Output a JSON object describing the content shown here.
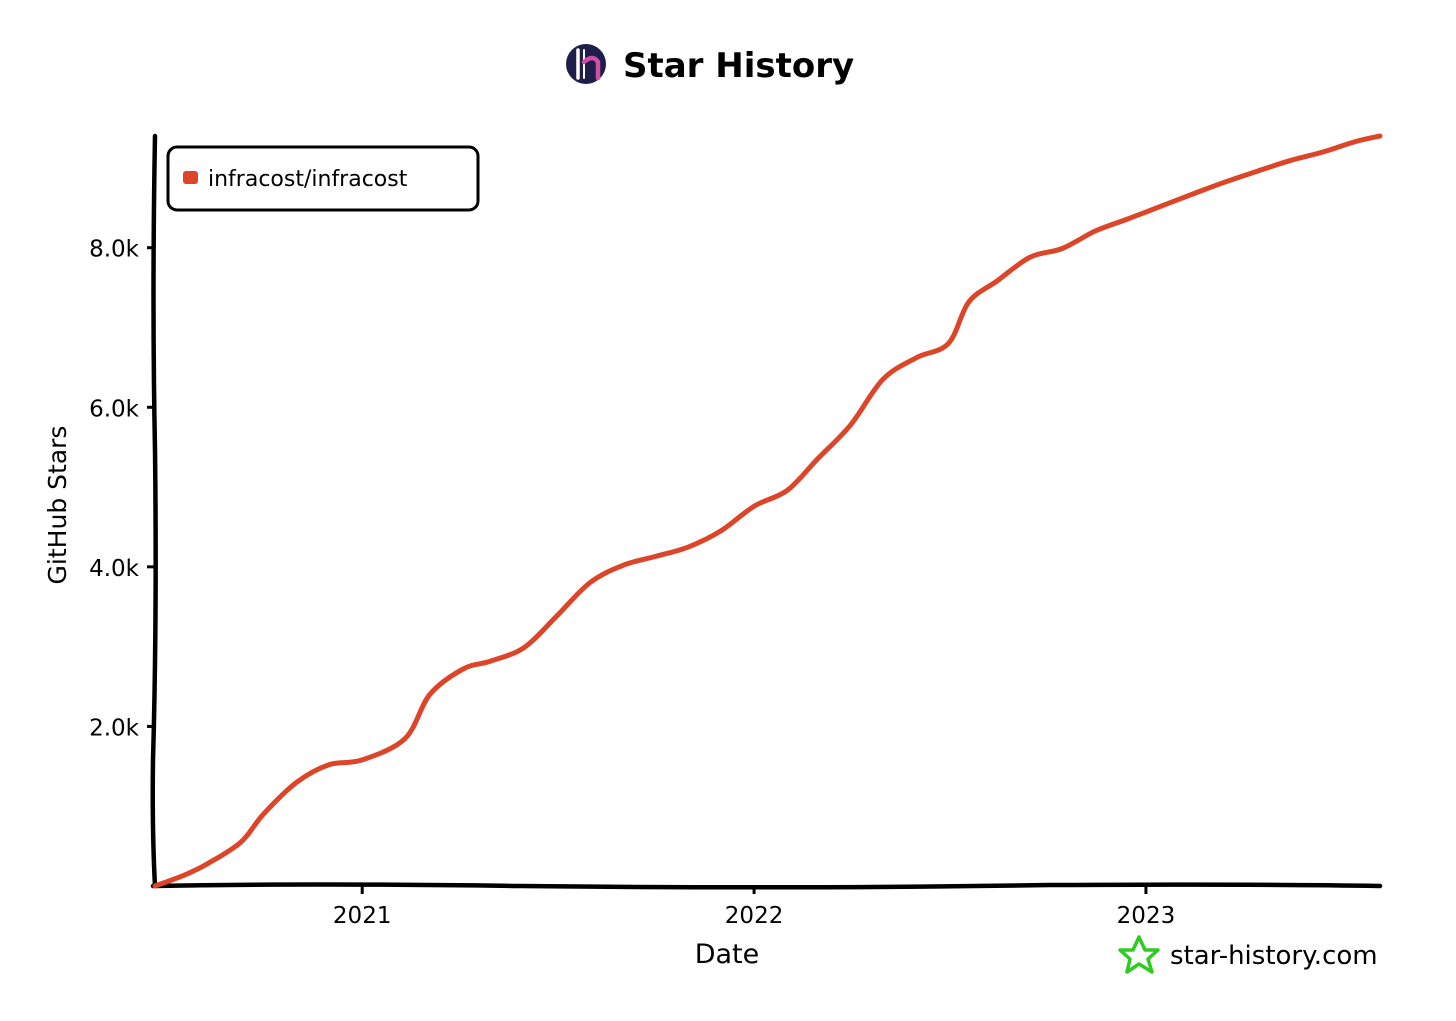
{
  "header": {
    "logo_icon": "star-history-logo-icon",
    "title": "Star History"
  },
  "footer": {
    "brand_icon": "green-star-icon",
    "brand_text": "star-history.com"
  },
  "colors": {
    "series": "#dd4528",
    "axis": "#000000",
    "brand_green": "#2ecc1f",
    "logo_bg": "#1f1d4a",
    "logo_accent": "#d04fa6"
  },
  "chart_data": {
    "type": "line",
    "title": "Star History",
    "xlabel": "Date",
    "ylabel": "GitHub Stars",
    "x_scale": "time",
    "xlim": [
      "2020-06-22",
      "2023-08-07"
    ],
    "ylim": [
      0,
      9400
    ],
    "x_ticks": [
      {
        "label": "2021",
        "date": "2021-01-01"
      },
      {
        "label": "2022",
        "date": "2022-01-01"
      },
      {
        "label": "2023",
        "date": "2023-01-01"
      }
    ],
    "y_ticks": [
      {
        "label": "2.0k",
        "value": 2000
      },
      {
        "label": "4.0k",
        "value": 4000
      },
      {
        "label": "6.0k",
        "value": 6000
      },
      {
        "label": "8.0k",
        "value": 8000
      }
    ],
    "grid": false,
    "legend_position": "top-left",
    "series": [
      {
        "name": "infracost/infracost",
        "color": "#dd4528",
        "points": [
          {
            "x": "2020-06-22",
            "y": 0
          },
          {
            "x": "2020-07-20",
            "y": 140
          },
          {
            "x": "2020-08-10",
            "y": 280
          },
          {
            "x": "2020-09-10",
            "y": 550
          },
          {
            "x": "2020-10-01",
            "y": 900
          },
          {
            "x": "2020-11-01",
            "y": 1300
          },
          {
            "x": "2020-12-01",
            "y": 1520
          },
          {
            "x": "2021-01-01",
            "y": 1580
          },
          {
            "x": "2021-02-10",
            "y": 1850
          },
          {
            "x": "2021-03-05",
            "y": 2400
          },
          {
            "x": "2021-04-05",
            "y": 2720
          },
          {
            "x": "2021-05-01",
            "y": 2820
          },
          {
            "x": "2021-06-01",
            "y": 2990
          },
          {
            "x": "2021-07-01",
            "y": 3380
          },
          {
            "x": "2021-08-01",
            "y": 3800
          },
          {
            "x": "2021-09-01",
            "y": 4020
          },
          {
            "x": "2021-10-01",
            "y": 4130
          },
          {
            "x": "2021-11-01",
            "y": 4250
          },
          {
            "x": "2021-12-01",
            "y": 4450
          },
          {
            "x": "2022-01-01",
            "y": 4760
          },
          {
            "x": "2022-02-01",
            "y": 4960
          },
          {
            "x": "2022-03-01",
            "y": 5350
          },
          {
            "x": "2022-04-01",
            "y": 5780
          },
          {
            "x": "2022-05-01",
            "y": 6350
          },
          {
            "x": "2022-06-01",
            "y": 6620
          },
          {
            "x": "2022-07-01",
            "y": 6800
          },
          {
            "x": "2022-07-20",
            "y": 7320
          },
          {
            "x": "2022-08-15",
            "y": 7580
          },
          {
            "x": "2022-09-15",
            "y": 7880
          },
          {
            "x": "2022-10-15",
            "y": 7990
          },
          {
            "x": "2022-11-15",
            "y": 8210
          },
          {
            "x": "2022-12-15",
            "y": 8360
          },
          {
            "x": "2023-01-15",
            "y": 8520
          },
          {
            "x": "2023-02-15",
            "y": 8680
          },
          {
            "x": "2023-03-15",
            "y": 8820
          },
          {
            "x": "2023-04-15",
            "y": 8960
          },
          {
            "x": "2023-05-15",
            "y": 9090
          },
          {
            "x": "2023-06-15",
            "y": 9200
          },
          {
            "x": "2023-07-15",
            "y": 9330
          },
          {
            "x": "2023-08-07",
            "y": 9400
          }
        ]
      }
    ]
  }
}
